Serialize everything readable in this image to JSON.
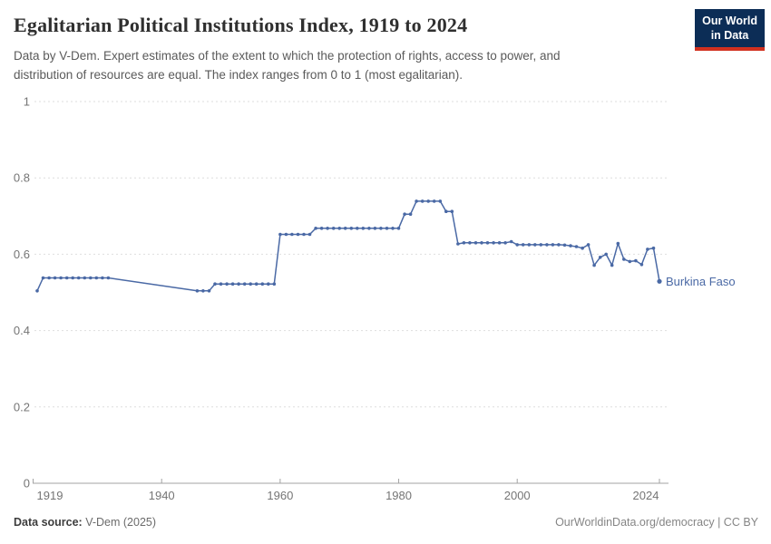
{
  "header": {
    "title": "Egalitarian Political Institutions Index, 1919 to 2024",
    "subtitle": "Data by V-Dem. Expert estimates of the extent to which the protection of rights, access to power, and distribution of resources are equal. The index ranges from 0 to 1 (most egalitarian).",
    "logo_line1": "Our World",
    "logo_line2": "in Data"
  },
  "footer": {
    "source_label": "Data source:",
    "source_value": " V-Dem (2025)",
    "credit": "OurWorldinData.org/democracy | CC BY"
  },
  "chart_data": {
    "type": "line",
    "title": "Egalitarian Political Institutions Index, 1919 to 2024",
    "series": [
      {
        "name": "Burkina Faso",
        "years": [
          1919,
          1920,
          1921,
          1922,
          1923,
          1924,
          1925,
          1926,
          1927,
          1928,
          1929,
          1930,
          1931,
          1946,
          1947,
          1948,
          1949,
          1950,
          1951,
          1952,
          1953,
          1954,
          1955,
          1956,
          1957,
          1958,
          1959,
          1960,
          1961,
          1962,
          1963,
          1964,
          1965,
          1966,
          1967,
          1968,
          1969,
          1970,
          1971,
          1972,
          1973,
          1974,
          1975,
          1976,
          1977,
          1978,
          1979,
          1980,
          1981,
          1982,
          1983,
          1984,
          1985,
          1986,
          1987,
          1988,
          1989,
          1990,
          1991,
          1992,
          1993,
          1994,
          1995,
          1996,
          1997,
          1998,
          1999,
          2000,
          2001,
          2002,
          2003,
          2004,
          2005,
          2006,
          2007,
          2008,
          2009,
          2010,
          2011,
          2012,
          2013,
          2014,
          2015,
          2016,
          2017,
          2018,
          2019,
          2020,
          2021,
          2022,
          2023,
          2024
        ],
        "values": [
          0.504,
          0.538,
          0.538,
          0.538,
          0.538,
          0.538,
          0.538,
          0.538,
          0.538,
          0.538,
          0.538,
          0.538,
          0.538,
          0.504,
          0.504,
          0.504,
          0.522,
          0.522,
          0.522,
          0.522,
          0.522,
          0.522,
          0.522,
          0.522,
          0.522,
          0.522,
          0.522,
          0.652,
          0.652,
          0.652,
          0.652,
          0.652,
          0.652,
          0.668,
          0.668,
          0.668,
          0.668,
          0.668,
          0.668,
          0.668,
          0.668,
          0.668,
          0.668,
          0.668,
          0.668,
          0.668,
          0.668,
          0.668,
          0.705,
          0.705,
          0.739,
          0.739,
          0.739,
          0.739,
          0.739,
          0.712,
          0.712,
          0.627,
          0.63,
          0.63,
          0.63,
          0.63,
          0.63,
          0.63,
          0.63,
          0.63,
          0.633,
          0.625,
          0.625,
          0.625,
          0.625,
          0.625,
          0.625,
          0.625,
          0.625,
          0.624,
          0.622,
          0.62,
          0.616,
          0.625,
          0.571,
          0.592,
          0.6,
          0.571,
          0.628,
          0.587,
          0.581,
          0.583,
          0.573,
          0.613,
          0.616,
          0.529
        ],
        "data_gap_note": "no observations 1932-1945; line interpolated"
      }
    ],
    "xlabel": "",
    "ylabel": "",
    "ylim": [
      0,
      1
    ],
    "yticks": [
      0,
      0.2,
      0.4,
      0.6,
      0.8,
      1
    ],
    "ytick_labels": [
      "0",
      "0.2",
      "0.4",
      "0.6",
      "0.8",
      "1"
    ],
    "xticks": [
      1919,
      1940,
      1960,
      1980,
      2000,
      2024
    ],
    "grid": "dashed-horizontal",
    "legend_position": "end-of-line-label",
    "colors": {
      "line": "#4a69a5",
      "grid": "#dedede",
      "axis": "#a3a3a3",
      "tick_label": "#757575",
      "logo_bg": "#0c2d56",
      "logo_stripe": "#d1301f"
    }
  }
}
